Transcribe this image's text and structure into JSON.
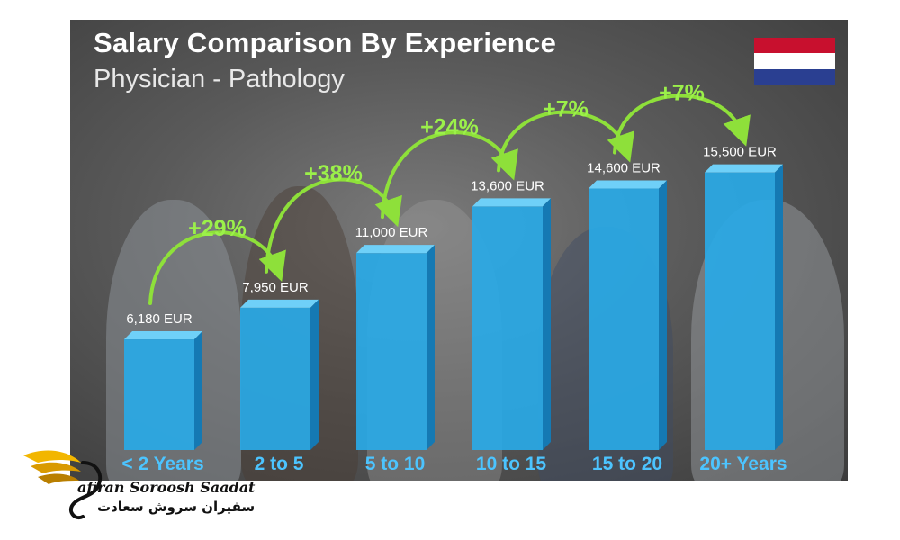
{
  "chart_data": {
    "type": "bar",
    "title": "Salary Comparison By Experience",
    "subtitle": "Physician - Pathology",
    "categories": [
      "< 2 Years",
      "2 to 5",
      "5 to 10",
      "10 to 15",
      "15 to 20",
      "20+ Years"
    ],
    "values": [
      6180,
      7950,
      11000,
      13600,
      14600,
      15500
    ],
    "value_labels": [
      "6,180 EUR",
      "7,950 EUR",
      "11,000 EUR",
      "13,600 EUR",
      "14,600 EUR",
      "15,500 EUR"
    ],
    "changes": [
      "+29%",
      "+38%",
      "+24%",
      "+7%",
      "+7%"
    ],
    "ylim": [
      0,
      19000
    ],
    "colors": {
      "bar": "#29a9e6",
      "bar_top": "#6fd0f8",
      "bar_side": "#1579b3",
      "arrow": "#8ee03a",
      "change_text": "#9bf04a"
    }
  },
  "flag": {
    "colors": [
      "#c8102e",
      "#ffffff",
      "#2a3f91"
    ]
  },
  "logo": {
    "english": "afiran Soroosh Saadat",
    "persian": "سفیران سروش سعادت"
  }
}
